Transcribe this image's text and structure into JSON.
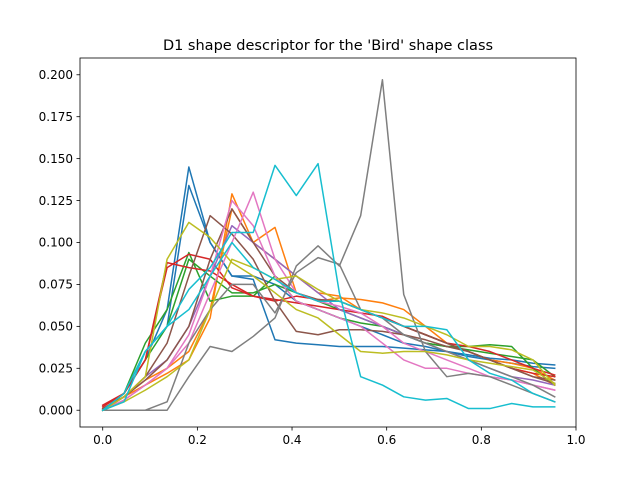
{
  "chart_data": {
    "type": "line",
    "title": "D1 shape descriptor for the 'Bird' shape class",
    "xlabel": "",
    "ylabel": "",
    "xlim": [
      -0.048,
      1.0
    ],
    "ylim": [
      -0.01,
      0.21
    ],
    "x_ticks": [
      0.0,
      0.2,
      0.4,
      0.6,
      0.8,
      1.0
    ],
    "x_tick_labels": [
      "0.0",
      "0.2",
      "0.4",
      "0.6",
      "0.8",
      "1.0"
    ],
    "y_ticks": [
      0.0,
      0.025,
      0.05,
      0.075,
      0.1,
      0.125,
      0.15,
      0.175,
      0.2
    ],
    "y_tick_labels": [
      "0.000",
      "0.025",
      "0.050",
      "0.075",
      "0.100",
      "0.125",
      "0.150",
      "0.175",
      "0.200"
    ],
    "grid": false,
    "legend": "none",
    "x": [
      0.0,
      0.045,
      0.09,
      0.136,
      0.182,
      0.227,
      0.273,
      0.318,
      0.364,
      0.409,
      0.455,
      0.5,
      0.545,
      0.591,
      0.636,
      0.682,
      0.727,
      0.773,
      0.818,
      0.864,
      0.909,
      0.955
    ],
    "series": [
      {
        "color": "#1f77b4",
        "values": [
          0.0,
          0.01,
          0.03,
          0.06,
          0.145,
          0.1,
          0.08,
          0.078,
          0.042,
          0.04,
          0.039,
          0.038,
          0.038,
          0.038,
          0.037,
          0.036,
          0.035,
          0.033,
          0.031,
          0.03,
          0.028,
          0.027
        ]
      },
      {
        "color": "#1f77b4",
        "values": [
          0.0,
          0.01,
          0.035,
          0.05,
          0.134,
          0.1,
          0.08,
          0.08,
          0.075,
          0.065,
          0.06,
          0.055,
          0.05,
          0.045,
          0.04,
          0.038,
          0.035,
          0.032,
          0.03,
          0.028,
          0.026,
          0.025
        ]
      },
      {
        "color": "#ff7f0e",
        "values": [
          0.001,
          0.008,
          0.015,
          0.022,
          0.03,
          0.055,
          0.129,
          0.1,
          0.109,
          0.07,
          0.065,
          0.067,
          0.066,
          0.064,
          0.06,
          0.05,
          0.04,
          0.035,
          0.03,
          0.028,
          0.025,
          0.018
        ]
      },
      {
        "color": "#ff7f0e",
        "values": [
          0.0,
          0.008,
          0.018,
          0.025,
          0.035,
          0.06,
          0.12,
          0.1,
          0.09,
          0.08,
          0.07,
          0.068,
          0.06,
          0.055,
          0.05,
          0.045,
          0.04,
          0.035,
          0.03,
          0.025,
          0.022,
          0.015
        ]
      },
      {
        "color": "#2ca02c",
        "values": [
          0.0,
          0.01,
          0.04,
          0.06,
          0.094,
          0.065,
          0.068,
          0.068,
          0.08,
          0.065,
          0.06,
          0.055,
          0.052,
          0.05,
          0.045,
          0.04,
          0.038,
          0.036,
          0.034,
          0.032,
          0.03,
          0.02
        ]
      },
      {
        "color": "#2ca02c",
        "values": [
          0.0,
          0.01,
          0.03,
          0.05,
          0.09,
          0.08,
          0.07,
          0.07,
          0.075,
          0.07,
          0.065,
          0.06,
          0.055,
          0.05,
          0.045,
          0.04,
          0.038,
          0.038,
          0.039,
          0.038,
          0.025,
          0.015
        ]
      },
      {
        "color": "#d62728",
        "values": [
          0.003,
          0.01,
          0.03,
          0.088,
          0.085,
          0.083,
          0.075,
          0.068,
          0.065,
          0.068,
          0.066,
          0.065,
          0.06,
          0.055,
          0.05,
          0.045,
          0.04,
          0.035,
          0.03,
          0.025,
          0.022,
          0.02
        ]
      },
      {
        "color": "#d62728",
        "values": [
          0.002,
          0.01,
          0.03,
          0.085,
          0.093,
          0.09,
          0.073,
          0.068,
          0.066,
          0.064,
          0.062,
          0.06,
          0.058,
          0.056,
          0.05,
          0.045,
          0.04,
          0.038,
          0.035,
          0.03,
          0.025,
          0.021
        ]
      },
      {
        "color": "#9467bd",
        "values": [
          0.0,
          0.008,
          0.02,
          0.03,
          0.05,
          0.08,
          0.11,
          0.1,
          0.09,
          0.08,
          0.07,
          0.06,
          0.055,
          0.05,
          0.045,
          0.04,
          0.035,
          0.03,
          0.025,
          0.02,
          0.018,
          0.015
        ]
      },
      {
        "color": "#8c564b",
        "values": [
          0.001,
          0.008,
          0.02,
          0.04,
          0.08,
          0.116,
          0.105,
          0.09,
          0.065,
          0.047,
          0.045,
          0.048,
          0.048,
          0.047,
          0.045,
          0.042,
          0.038,
          0.035,
          0.03,
          0.025,
          0.02,
          0.018
        ]
      },
      {
        "color": "#8c564b",
        "values": [
          0.0,
          0.008,
          0.018,
          0.03,
          0.05,
          0.09,
          0.12,
          0.1,
          0.08,
          0.07,
          0.066,
          0.065,
          0.06,
          0.055,
          0.05,
          0.045,
          0.04,
          0.035,
          0.03,
          0.025,
          0.02,
          0.016
        ]
      },
      {
        "color": "#e377c2",
        "values": [
          0.0,
          0.006,
          0.015,
          0.025,
          0.04,
          0.07,
          0.1,
          0.13,
          0.09,
          0.07,
          0.065,
          0.062,
          0.058,
          0.05,
          0.04,
          0.035,
          0.03,
          0.025,
          0.02,
          0.018,
          0.015,
          0.012
        ]
      },
      {
        "color": "#e377c2",
        "values": [
          0.0,
          0.006,
          0.015,
          0.025,
          0.045,
          0.08,
          0.125,
          0.11,
          0.08,
          0.065,
          0.06,
          0.055,
          0.05,
          0.04,
          0.03,
          0.025,
          0.025,
          0.022,
          0.02,
          0.018,
          0.015,
          0.012
        ]
      },
      {
        "color": "#7f7f7f",
        "values": [
          0.0,
          0.0,
          0.0,
          0.0,
          0.02,
          0.038,
          0.035,
          0.044,
          0.055,
          0.086,
          0.098,
          0.086,
          0.116,
          0.197,
          0.069,
          0.035,
          0.02,
          0.022,
          0.02,
          0.015,
          0.01,
          0.005
        ]
      },
      {
        "color": "#7f7f7f",
        "values": [
          0.0,
          0.0,
          0.0,
          0.005,
          0.04,
          0.06,
          0.075,
          0.075,
          0.058,
          0.082,
          0.091,
          0.087,
          0.06,
          0.055,
          0.045,
          0.04,
          0.035,
          0.03,
          0.025,
          0.02,
          0.015,
          0.008
        ]
      },
      {
        "color": "#bcbd22",
        "values": [
          0.0,
          0.008,
          0.02,
          0.09,
          0.112,
          0.103,
          0.088,
          0.08,
          0.07,
          0.06,
          0.055,
          0.045,
          0.035,
          0.034,
          0.035,
          0.035,
          0.033,
          0.03,
          0.028,
          0.026,
          0.024,
          0.016
        ]
      },
      {
        "color": "#bcbd22",
        "values": [
          0.0,
          0.005,
          0.012,
          0.02,
          0.03,
          0.06,
          0.09,
          0.085,
          0.078,
          0.08,
          0.072,
          0.065,
          0.06,
          0.058,
          0.055,
          0.05,
          0.045,
          0.038,
          0.038,
          0.036,
          0.03,
          0.015
        ]
      },
      {
        "color": "#17becf",
        "values": [
          0.0,
          0.005,
          0.035,
          0.05,
          0.072,
          0.085,
          0.106,
          0.106,
          0.146,
          0.128,
          0.147,
          0.07,
          0.02,
          0.015,
          0.008,
          0.006,
          0.007,
          0.001,
          0.001,
          0.004,
          0.002,
          0.002
        ]
      },
      {
        "color": "#17becf",
        "values": [
          0.0,
          0.01,
          0.035,
          0.05,
          0.06,
          0.08,
          0.1,
          0.085,
          0.078,
          0.07,
          0.065,
          0.065,
          0.06,
          0.055,
          0.05,
          0.05,
          0.048,
          0.03,
          0.022,
          0.018,
          0.01,
          0.005
        ]
      }
    ]
  }
}
